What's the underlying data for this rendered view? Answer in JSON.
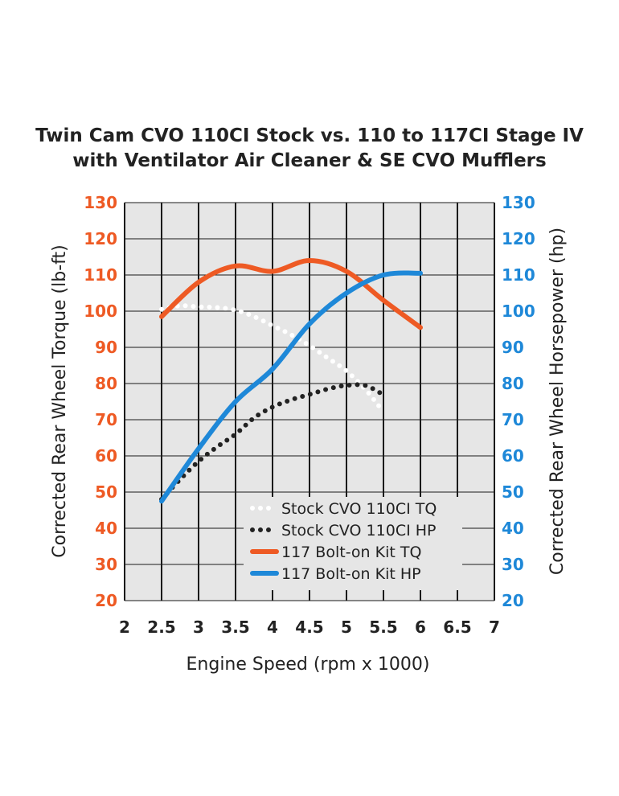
{
  "chart_data": {
    "type": "line",
    "title_line1": "Twin Cam CVO 110CI Stock vs. 110 to 117CI Stage IV",
    "title_line2": "with Ventilator Air Cleaner & SE CVO Mufflers",
    "xlabel": "Engine Speed (rpm x 1000)",
    "ylabel_left": "Corrected Rear Wheel Torque (lb-ft)",
    "ylabel_right": "Corrected Rear Wheel Horsepower (hp)",
    "xlim": [
      2,
      7
    ],
    "ylim": [
      20,
      130
    ],
    "x_ticks": [
      "2",
      "2.5",
      "3",
      "3.5",
      "4",
      "4.5",
      "5",
      "5.5",
      "6",
      "6.5",
      "7"
    ],
    "y_ticks": [
      "20",
      "30",
      "40",
      "50",
      "60",
      "70",
      "80",
      "90",
      "100",
      "110",
      "120",
      "130"
    ],
    "grid": true,
    "legend_position": "bottom-right",
    "series": [
      {
        "name": "Stock CVO 110CI TQ",
        "color": "#ffffff",
        "style": "dotted",
        "x": [
          2.5,
          2.75,
          3.0,
          3.25,
          3.5,
          3.75,
          4.0,
          4.25,
          4.5,
          4.75,
          5.0,
          5.25,
          5.45
        ],
        "y": [
          100.5,
          101.5,
          101.2,
          101.0,
          100.3,
          98.5,
          96.0,
          93.5,
          90.5,
          87.0,
          83.5,
          78.5,
          73.5
        ]
      },
      {
        "name": "Stock CVO 110CI HP",
        "color": "#222222",
        "style": "dotted",
        "x": [
          2.5,
          2.75,
          3.0,
          3.25,
          3.5,
          3.75,
          4.0,
          4.25,
          4.5,
          4.75,
          5.0,
          5.25,
          5.45
        ],
        "y": [
          48.0,
          53.5,
          58.5,
          62.5,
          66.0,
          70.5,
          73.5,
          75.5,
          77.0,
          78.5,
          79.5,
          79.5,
          77.5
        ]
      },
      {
        "name": "117 Bolt-on Kit TQ",
        "color": "#ee5a24",
        "style": "solid",
        "x": [
          2.5,
          3.0,
          3.5,
          4.0,
          4.5,
          5.0,
          5.5,
          6.0
        ],
        "y": [
          98.5,
          108.0,
          112.5,
          111.0,
          114.0,
          111.0,
          103.0,
          95.5
        ]
      },
      {
        "name": "117 Bolt-on Kit HP",
        "color": "#1e88d8",
        "style": "solid",
        "x": [
          2.5,
          3.0,
          3.5,
          4.0,
          4.5,
          5.0,
          5.5,
          6.0
        ],
        "y": [
          47.5,
          62.0,
          75.0,
          84.0,
          96.5,
          105.0,
          110.0,
          110.5
        ]
      }
    ],
    "colors": {
      "left_axis": "#ee5a24",
      "right_axis": "#1e88d8",
      "bottom_axis": "#222222",
      "plot_background": "#e6e6e6"
    }
  }
}
